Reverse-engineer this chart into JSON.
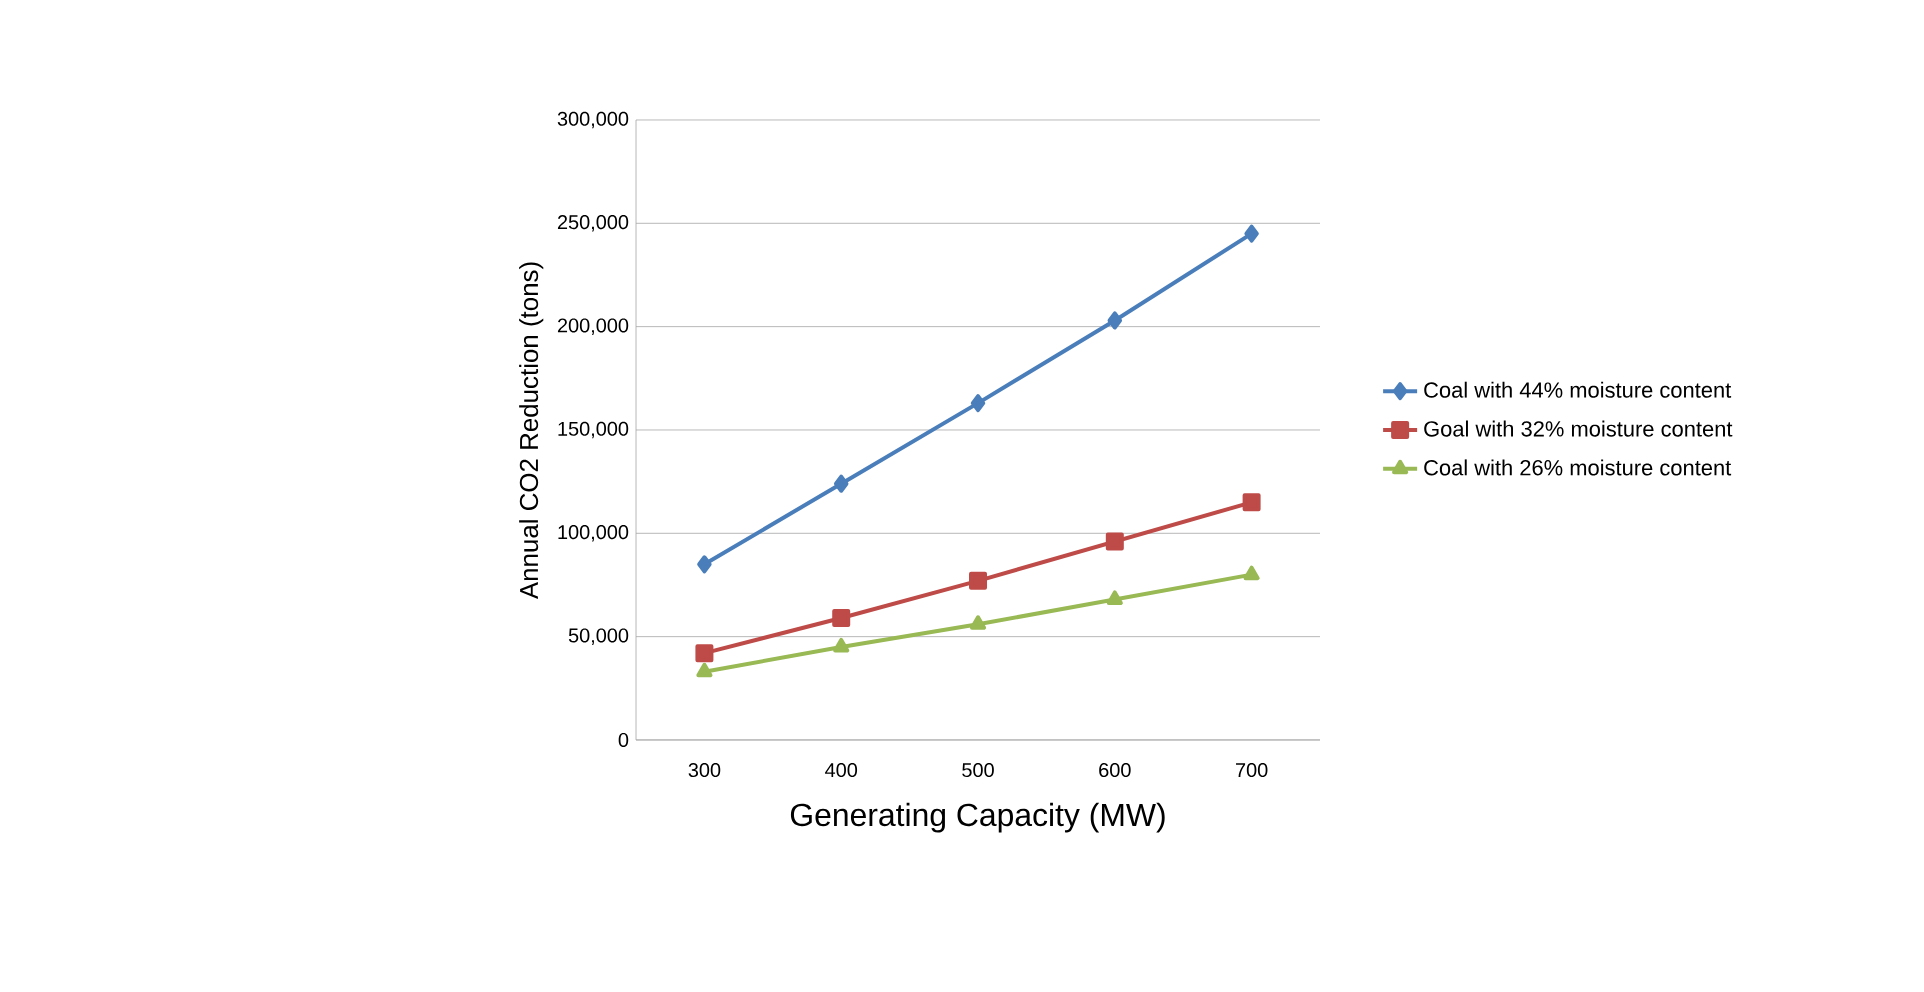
{
  "chart_data": {
    "type": "line",
    "xlabel": "Generating Capacity (MW)",
    "ylabel": "Annual CO2 Reduction (tons)",
    "categories": [
      "300",
      "400",
      "500",
      "600",
      "700"
    ],
    "ylim": [
      0,
      300000
    ],
    "yticks": [
      0,
      {
        "value": 50000,
        "label": "50,000"
      },
      {
        "value": 100000,
        "label": "100,000"
      },
      {
        "value": 150000,
        "label": "150,000"
      },
      {
        "value": 200000,
        "label": "200,000"
      },
      {
        "value": 250000,
        "label": "250,000"
      },
      {
        "value": 300000,
        "label": "300,000"
      }
    ],
    "grid": "y",
    "legend": "right",
    "line_style": "solid",
    "series": [
      {
        "name": "Coal with 44% moisture content",
        "color": "#4a7ebb",
        "marker": "diamond",
        "values": [
          85000,
          124000,
          163000,
          203000,
          245000
        ]
      },
      {
        "name": "Goal with 32% moisture content",
        "color": "#be4b48",
        "marker": "square",
        "values": [
          42000,
          59000,
          77000,
          96000,
          115000
        ]
      },
      {
        "name": "Coal with 26% moisture content",
        "color": "#98b954",
        "marker": "triangle",
        "values": [
          33000,
          45000,
          56000,
          68000,
          80000
        ]
      }
    ]
  }
}
